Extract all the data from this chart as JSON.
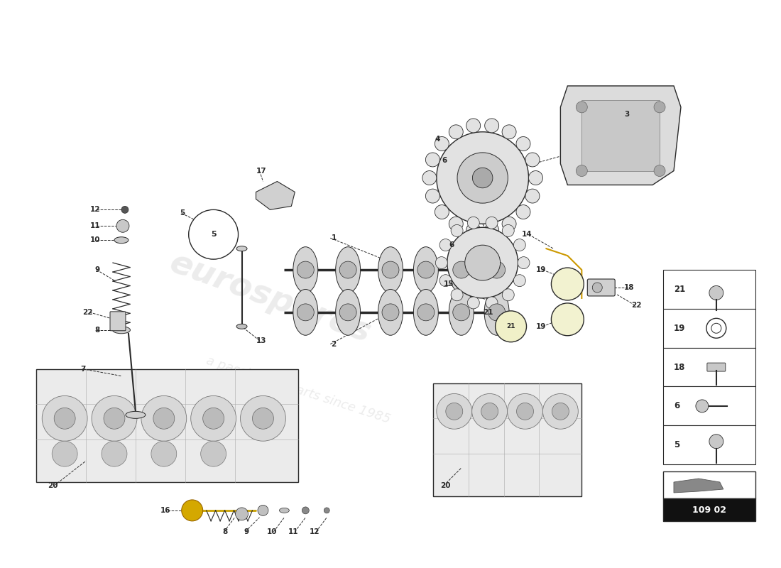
{
  "bg_color": "#ffffff",
  "lc": "#2a2a2a",
  "gray": "#888888",
  "lightgray": "#cccccc",
  "dimgray": "#555555",
  "yellow_part": "#e8c840",
  "watermark_color": "#d0d0d0",
  "watermark_alpha": 0.4,
  "part_number": "109 02",
  "legend_items": [
    "21",
    "19",
    "18",
    "6",
    "5"
  ],
  "fig_w": 11.0,
  "fig_h": 8.0
}
